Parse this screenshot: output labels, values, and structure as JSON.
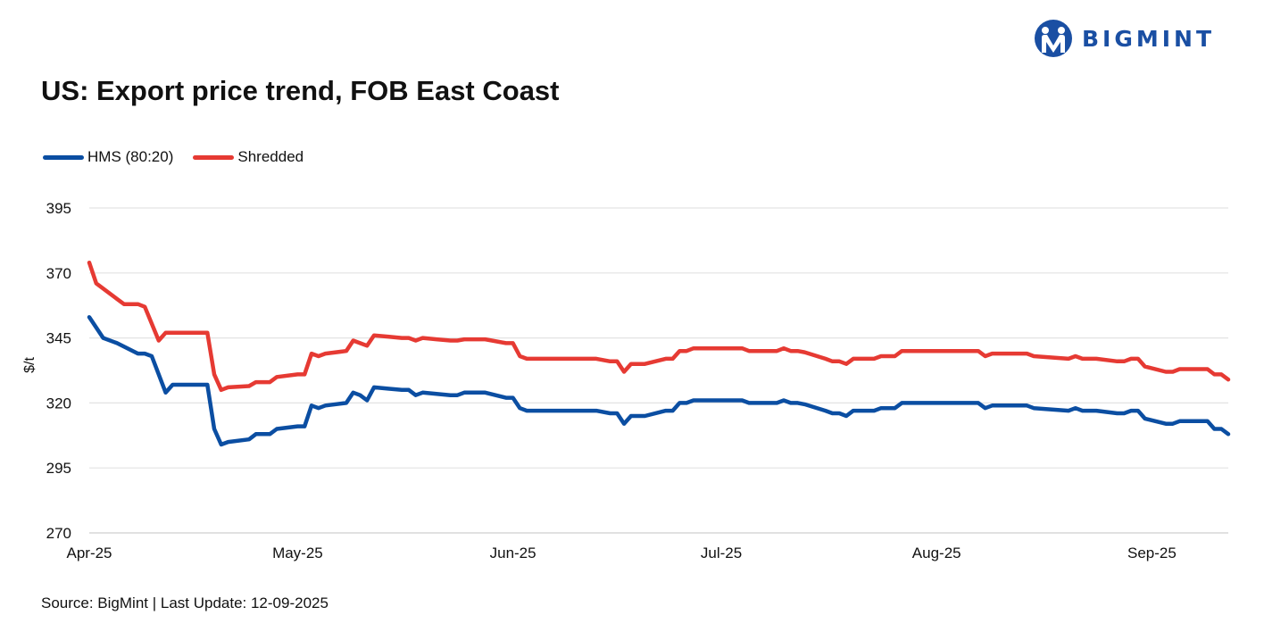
{
  "brand": {
    "name": "BIGMINT",
    "color": "#1a4fa3"
  },
  "title": "US: Export price trend, FOB East Coast",
  "source": "Source: BigMint | Last Update: 12-09-2025",
  "chart_data": {
    "type": "line",
    "ylabel": "$/t",
    "ylim": [
      270,
      395
    ],
    "yticks": [
      395,
      370,
      345,
      320,
      295,
      270
    ],
    "grid": true,
    "legend_position": "top-left",
    "x_tick_labels": [
      "Apr-25",
      "May-25",
      "Jun-25",
      "Jul-25",
      "Aug-25",
      "Sep-25"
    ],
    "x_range": [
      "2025-04-01",
      "2025-09-12"
    ],
    "series": [
      {
        "name": "HMS (80:20)",
        "color": "#0b4ea2",
        "points": [
          [
            "2025-04-01",
            353
          ],
          [
            "2025-04-03",
            345
          ],
          [
            "2025-04-05",
            343
          ],
          [
            "2025-04-08",
            339
          ],
          [
            "2025-04-09",
            339
          ],
          [
            "2025-04-10",
            338
          ],
          [
            "2025-04-12",
            324
          ],
          [
            "2025-04-13",
            327
          ],
          [
            "2025-04-17",
            327
          ],
          [
            "2025-04-18",
            327
          ],
          [
            "2025-04-19",
            310
          ],
          [
            "2025-04-20",
            304
          ],
          [
            "2025-04-21",
            305
          ],
          [
            "2025-04-24",
            306
          ],
          [
            "2025-04-25",
            308
          ],
          [
            "2025-04-27",
            308
          ],
          [
            "2025-04-28",
            310
          ],
          [
            "2025-05-01",
            311
          ],
          [
            "2025-05-02",
            311
          ],
          [
            "2025-05-03",
            319
          ],
          [
            "2025-05-04",
            318
          ],
          [
            "2025-05-05",
            319
          ],
          [
            "2025-05-08",
            320
          ],
          [
            "2025-05-09",
            324
          ],
          [
            "2025-05-10",
            323
          ],
          [
            "2025-05-11",
            321
          ],
          [
            "2025-05-12",
            326
          ],
          [
            "2025-05-14",
            325.5
          ],
          [
            "2025-05-16",
            325
          ],
          [
            "2025-05-17",
            325
          ],
          [
            "2025-05-18",
            323
          ],
          [
            "2025-05-19",
            324
          ],
          [
            "2025-05-21",
            323.5
          ],
          [
            "2025-05-23",
            323
          ],
          [
            "2025-05-24",
            323
          ],
          [
            "2025-05-25",
            324
          ],
          [
            "2025-05-28",
            324
          ],
          [
            "2025-05-31",
            322
          ],
          [
            "2025-06-01",
            322
          ],
          [
            "2025-06-02",
            318
          ],
          [
            "2025-06-03",
            317
          ],
          [
            "2025-06-10",
            317
          ],
          [
            "2025-06-13",
            317
          ],
          [
            "2025-06-15",
            316
          ],
          [
            "2025-06-16",
            316
          ],
          [
            "2025-06-17",
            312
          ],
          [
            "2025-06-18",
            315
          ],
          [
            "2025-06-20",
            315
          ],
          [
            "2025-06-23",
            317
          ],
          [
            "2025-06-24",
            317
          ],
          [
            "2025-06-25",
            320
          ],
          [
            "2025-06-26",
            320
          ],
          [
            "2025-06-27",
            321
          ],
          [
            "2025-07-01",
            321
          ],
          [
            "2025-07-04",
            321
          ],
          [
            "2025-07-05",
            320
          ],
          [
            "2025-07-08",
            320
          ],
          [
            "2025-07-09",
            320
          ],
          [
            "2025-07-10",
            321
          ],
          [
            "2025-07-11",
            320
          ],
          [
            "2025-07-12",
            320
          ],
          [
            "2025-07-13",
            319.5
          ],
          [
            "2025-07-16",
            317
          ],
          [
            "2025-07-17",
            316
          ],
          [
            "2025-07-18",
            316
          ],
          [
            "2025-07-19",
            315
          ],
          [
            "2025-07-20",
            317
          ],
          [
            "2025-07-23",
            317
          ],
          [
            "2025-07-24",
            318
          ],
          [
            "2025-07-26",
            318
          ],
          [
            "2025-07-27",
            320
          ],
          [
            "2025-08-07",
            320
          ],
          [
            "2025-08-08",
            318
          ],
          [
            "2025-08-09",
            319
          ],
          [
            "2025-08-14",
            319
          ],
          [
            "2025-08-15",
            318
          ],
          [
            "2025-08-20",
            317
          ],
          [
            "2025-08-21",
            318
          ],
          [
            "2025-08-22",
            317
          ],
          [
            "2025-08-24",
            317
          ],
          [
            "2025-08-27",
            316
          ],
          [
            "2025-08-28",
            316
          ],
          [
            "2025-08-29",
            317
          ],
          [
            "2025-08-30",
            317
          ],
          [
            "2025-08-31",
            314
          ],
          [
            "2025-09-03",
            312
          ],
          [
            "2025-09-04",
            312
          ],
          [
            "2025-09-05",
            313
          ],
          [
            "2025-09-09",
            313
          ],
          [
            "2025-09-10",
            310
          ],
          [
            "2025-09-11",
            310
          ],
          [
            "2025-09-12",
            308
          ]
        ]
      },
      {
        "name": "Shredded",
        "color": "#e63a33",
        "points": [
          [
            "2025-04-01",
            374
          ],
          [
            "2025-04-02",
            366
          ],
          [
            "2025-04-05",
            360
          ],
          [
            "2025-04-06",
            358
          ],
          [
            "2025-04-08",
            358
          ],
          [
            "2025-04-09",
            357
          ],
          [
            "2025-04-11",
            344
          ],
          [
            "2025-04-12",
            347
          ],
          [
            "2025-04-17",
            347
          ],
          [
            "2025-04-18",
            347
          ],
          [
            "2025-04-19",
            331
          ],
          [
            "2025-04-20",
            325
          ],
          [
            "2025-04-21",
            326
          ],
          [
            "2025-04-24",
            326.5
          ],
          [
            "2025-04-25",
            328
          ],
          [
            "2025-04-27",
            328
          ],
          [
            "2025-04-28",
            330
          ],
          [
            "2025-05-01",
            331
          ],
          [
            "2025-05-02",
            331
          ],
          [
            "2025-05-03",
            339
          ],
          [
            "2025-05-04",
            338
          ],
          [
            "2025-05-05",
            339
          ],
          [
            "2025-05-08",
            340
          ],
          [
            "2025-05-09",
            344
          ],
          [
            "2025-05-10",
            343
          ],
          [
            "2025-05-11",
            342
          ],
          [
            "2025-05-12",
            346
          ],
          [
            "2025-05-14",
            345.5
          ],
          [
            "2025-05-16",
            345
          ],
          [
            "2025-05-17",
            345
          ],
          [
            "2025-05-18",
            344
          ],
          [
            "2025-05-19",
            345
          ],
          [
            "2025-05-21",
            344.5
          ],
          [
            "2025-05-23",
            344
          ],
          [
            "2025-05-24",
            344
          ],
          [
            "2025-05-25",
            344.5
          ],
          [
            "2025-05-28",
            344.5
          ],
          [
            "2025-05-31",
            343
          ],
          [
            "2025-06-01",
            343
          ],
          [
            "2025-06-02",
            338
          ],
          [
            "2025-06-03",
            337
          ],
          [
            "2025-06-10",
            337
          ],
          [
            "2025-06-13",
            337
          ],
          [
            "2025-06-15",
            336
          ],
          [
            "2025-06-16",
            336
          ],
          [
            "2025-06-17",
            332
          ],
          [
            "2025-06-18",
            335
          ],
          [
            "2025-06-20",
            335
          ],
          [
            "2025-06-23",
            337
          ],
          [
            "2025-06-24",
            337
          ],
          [
            "2025-06-25",
            340
          ],
          [
            "2025-06-26",
            340
          ],
          [
            "2025-06-27",
            341
          ],
          [
            "2025-07-01",
            341
          ],
          [
            "2025-07-04",
            341
          ],
          [
            "2025-07-05",
            340
          ],
          [
            "2025-07-08",
            340
          ],
          [
            "2025-07-09",
            340
          ],
          [
            "2025-07-10",
            341
          ],
          [
            "2025-07-11",
            340
          ],
          [
            "2025-07-12",
            340
          ],
          [
            "2025-07-13",
            339.5
          ],
          [
            "2025-07-16",
            337
          ],
          [
            "2025-07-17",
            336
          ],
          [
            "2025-07-18",
            336
          ],
          [
            "2025-07-19",
            335
          ],
          [
            "2025-07-20",
            337
          ],
          [
            "2025-07-23",
            337
          ],
          [
            "2025-07-24",
            338
          ],
          [
            "2025-07-26",
            338
          ],
          [
            "2025-07-27",
            340
          ],
          [
            "2025-08-07",
            340
          ],
          [
            "2025-08-08",
            338
          ],
          [
            "2025-08-09",
            339
          ],
          [
            "2025-08-14",
            339
          ],
          [
            "2025-08-15",
            338
          ],
          [
            "2025-08-20",
            337
          ],
          [
            "2025-08-21",
            338
          ],
          [
            "2025-08-22",
            337
          ],
          [
            "2025-08-24",
            337
          ],
          [
            "2025-08-27",
            336
          ],
          [
            "2025-08-28",
            336
          ],
          [
            "2025-08-29",
            337
          ],
          [
            "2025-08-30",
            337
          ],
          [
            "2025-08-31",
            334
          ],
          [
            "2025-09-03",
            332
          ],
          [
            "2025-09-04",
            332
          ],
          [
            "2025-09-05",
            333
          ],
          [
            "2025-09-09",
            333
          ],
          [
            "2025-09-10",
            331
          ],
          [
            "2025-09-11",
            331
          ],
          [
            "2025-09-12",
            329
          ]
        ]
      }
    ]
  }
}
